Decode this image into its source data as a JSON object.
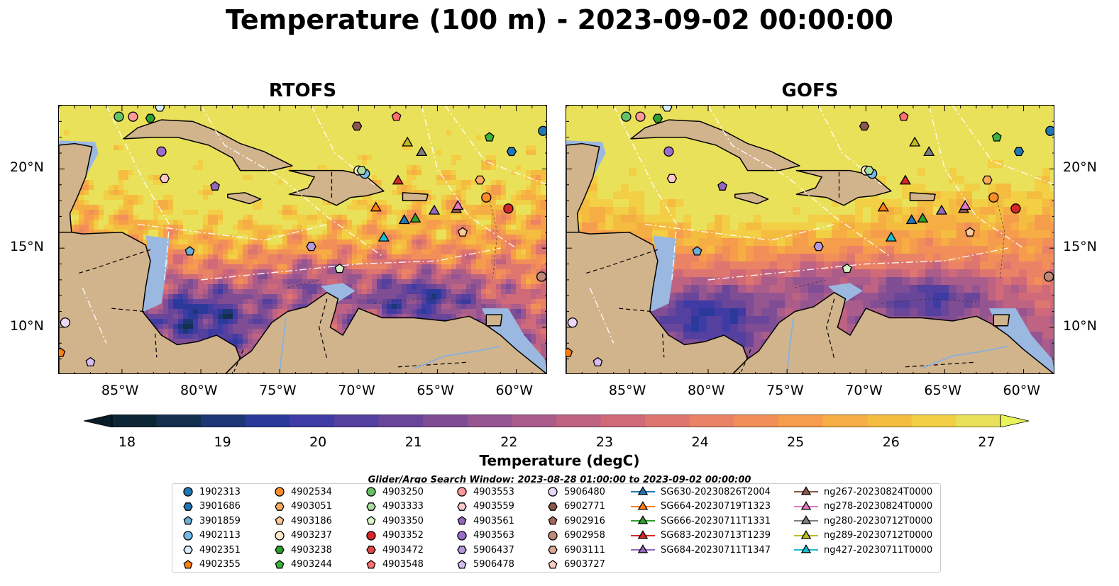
{
  "title": "Temperature (100 m) - 2023-09-02 00:00:00",
  "panels": [
    {
      "title": "RTOFS"
    },
    {
      "title": "GOFS"
    }
  ],
  "map": {
    "lon_range": [
      -89,
      -58
    ],
    "lat_range": [
      7,
      24
    ],
    "lon_ticks": [
      "85°W",
      "80°W",
      "75°W",
      "70°W",
      "65°W",
      "60°W"
    ],
    "lat_ticks": [
      "20°N",
      "15°N",
      "10°N"
    ],
    "land_color": "#d2b48c",
    "shelf_color": "#9bb8e0"
  },
  "colorbar": {
    "label": "Temperature (degC)",
    "ticks": [
      "18",
      "19",
      "20",
      "21",
      "22",
      "23",
      "24",
      "25",
      "26",
      "27"
    ],
    "colors": [
      "#0d2635",
      "#13304f",
      "#1d3676",
      "#2b3a9a",
      "#3f3ba4",
      "#54409f",
      "#6a469a",
      "#7f4d94",
      "#955591",
      "#aa5c8b",
      "#bf6383",
      "#d06a79",
      "#de7670",
      "#ea8265",
      "#f28f58",
      "#f59d4c",
      "#f6ad44",
      "#f5bd40",
      "#f2cf45",
      "#eae15a"
    ]
  },
  "search_window": "Glider/Argo Search Window: 2023-08-28 01:00:00 to 2023-09-02 00:00:00",
  "legend": {
    "items": [
      {
        "label": "1902313",
        "marker": "circle",
        "color": "#1f77b4"
      },
      {
        "label": "3901686",
        "marker": "hexagon",
        "color": "#1f77b4"
      },
      {
        "label": "3901859",
        "marker": "pentagon",
        "color": "#6baed6"
      },
      {
        "label": "4902113",
        "marker": "circle",
        "color": "#74b9e8"
      },
      {
        "label": "4902351",
        "marker": "hexagon",
        "color": "#d6eefa"
      },
      {
        "label": "4902355",
        "marker": "pentagon",
        "color": "#ff7f0e"
      },
      {
        "label": "4902534",
        "marker": "circle",
        "color": "#ff8c2a"
      },
      {
        "label": "4903051",
        "marker": "hexagon",
        "color": "#ffab5e"
      },
      {
        "label": "4903186",
        "marker": "pentagon",
        "color": "#ffc896"
      },
      {
        "label": "4903237",
        "marker": "circle",
        "color": "#ffe6c8"
      },
      {
        "label": "4903238",
        "marker": "hexagon",
        "color": "#2ca02c"
      },
      {
        "label": "4903244",
        "marker": "pentagon",
        "color": "#3cb43c"
      },
      {
        "label": "4903250",
        "marker": "circle",
        "color": "#66c266"
      },
      {
        "label": "4903333",
        "marker": "hexagon",
        "color": "#a8dca0"
      },
      {
        "label": "4903350",
        "marker": "pentagon",
        "color": "#d6f5c8"
      },
      {
        "label": "4903352",
        "marker": "circle",
        "color": "#d62728"
      },
      {
        "label": "4903472",
        "marker": "hexagon",
        "color": "#e04848"
      },
      {
        "label": "4903548",
        "marker": "pentagon",
        "color": "#ff7070"
      },
      {
        "label": "4903553",
        "marker": "circle",
        "color": "#ff9a9a"
      },
      {
        "label": "4903559",
        "marker": "hexagon",
        "color": "#ffc8c8"
      },
      {
        "label": "4903561",
        "marker": "pentagon",
        "color": "#9467bd"
      },
      {
        "label": "4903563",
        "marker": "circle",
        "color": "#9a6ccc"
      },
      {
        "label": "5906437",
        "marker": "hexagon",
        "color": "#b698dc"
      },
      {
        "label": "5906478",
        "marker": "pentagon",
        "color": "#d6bcf0"
      },
      {
        "label": "5906480",
        "marker": "circle",
        "color": "#ead8f8"
      },
      {
        "label": "6902771",
        "marker": "hexagon",
        "color": "#8c564b"
      },
      {
        "label": "6902916",
        "marker": "pentagon",
        "color": "#a4675a"
      },
      {
        "label": "6902958",
        "marker": "circle",
        "color": "#c08877"
      },
      {
        "label": "6903111",
        "marker": "hexagon",
        "color": "#dba896"
      },
      {
        "label": "6903727",
        "marker": "pentagon",
        "color": "#f8d0c4"
      },
      {
        "label": "SG630-20230826T2004",
        "marker": "triangle",
        "color": "#1f77b4"
      },
      {
        "label": "SG664-20230719T1323",
        "marker": "triangle",
        "color": "#ff7f0e"
      },
      {
        "label": "SG666-20230711T1331",
        "marker": "triangle",
        "color": "#2ca02c"
      },
      {
        "label": "SG683-20230713T1239",
        "marker": "triangle",
        "color": "#d62728"
      },
      {
        "label": "SG684-20230711T1347",
        "marker": "triangle",
        "color": "#9467bd"
      },
      {
        "label": "ng267-20230824T0000",
        "marker": "triangle",
        "color": "#8c564b"
      },
      {
        "label": "ng278-20230824T0000",
        "marker": "triangle",
        "color": "#e377c2"
      },
      {
        "label": "ng280-20230712T0000",
        "marker": "triangle",
        "color": "#7f7f7f"
      },
      {
        "label": "ng289-20230712T0000",
        "marker": "triangle",
        "color": "#bcbd22"
      },
      {
        "label": "ng427-20230711T0000",
        "marker": "triangle",
        "color": "#17becf"
      }
    ]
  },
  "platforms": [
    {
      "id": "1902313",
      "lon": -58.3,
      "lat": 22.4
    },
    {
      "id": "3901686",
      "lon": -60.3,
      "lat": 21.1
    },
    {
      "id": "4902113",
      "lon": -69.6,
      "lat": 19.7
    },
    {
      "id": "4902351",
      "lon": -82.6,
      "lat": 23.9
    },
    {
      "id": "4902355",
      "lon": -88.9,
      "lat": 8.4
    },
    {
      "id": "4902534",
      "lon": -61.9,
      "lat": 18.2
    },
    {
      "id": "4903051",
      "lon": -62.3,
      "lat": 19.3
    },
    {
      "id": "4903186",
      "lon": -63.4,
      "lat": 16.0
    },
    {
      "id": "4903237",
      "lon": -70.0,
      "lat": 19.9
    },
    {
      "id": "4903238",
      "lon": -83.2,
      "lat": 23.2
    },
    {
      "id": "4903244",
      "lon": -61.7,
      "lat": 22.0
    },
    {
      "id": "4903250",
      "lon": -85.2,
      "lat": 23.3
    },
    {
      "id": "4903333",
      "lon": -69.8,
      "lat": 19.9
    },
    {
      "id": "4903350",
      "lon": -71.2,
      "lat": 13.7
    },
    {
      "id": "4903352",
      "lon": -60.5,
      "lat": 17.5
    },
    {
      "id": "4903548",
      "lon": -67.6,
      "lat": 23.3
    },
    {
      "id": "4903553",
      "lon": -84.3,
      "lat": 23.3
    },
    {
      "id": "4903559",
      "lon": -82.3,
      "lat": 19.4
    },
    {
      "id": "4903561",
      "lon": -79.1,
      "lat": 18.9
    },
    {
      "id": "4903563",
      "lon": -82.5,
      "lat": 21.1
    },
    {
      "id": "5906437",
      "lon": -73.0,
      "lat": 15.1
    },
    {
      "id": "5906478",
      "lon": -87.0,
      "lat": 7.8
    },
    {
      "id": "5906480",
      "lon": -88.6,
      "lat": 10.3
    },
    {
      "id": "6902771",
      "lon": -70.1,
      "lat": 22.7
    },
    {
      "id": "6902958",
      "lon": -58.4,
      "lat": 13.2
    },
    {
      "id": "3901859",
      "lon": -80.7,
      "lat": 14.8
    }
  ],
  "gliders": [
    {
      "id": "SG630",
      "lon": -67.1,
      "lat": 16.8
    },
    {
      "id": "SG664",
      "lon": -68.9,
      "lat": 17.6
    },
    {
      "id": "SG666",
      "lon": -66.4,
      "lat": 16.9
    },
    {
      "id": "SG683",
      "lon": -67.5,
      "lat": 19.3
    },
    {
      "id": "SG684",
      "lon": -65.2,
      "lat": 17.4
    },
    {
      "id": "ng267",
      "lon": -63.8,
      "lat": 17.5
    },
    {
      "id": "ng278",
      "lon": -63.7,
      "lat": 17.7
    },
    {
      "id": "ng280",
      "lon": -66.0,
      "lat": 21.1
    },
    {
      "id": "ng289",
      "lon": -66.9,
      "lat": 21.7
    },
    {
      "id": "ng427",
      "lon": -68.4,
      "lat": 15.7
    }
  ]
}
